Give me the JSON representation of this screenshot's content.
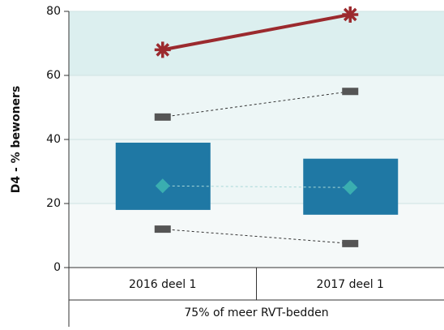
{
  "chart_data": {
    "type": "box",
    "ylabel": "D4 - % bewoners",
    "categories": [
      "2016 deel 1",
      "2017 deel 1"
    ],
    "group_label": "75% of meer RVT-bedden",
    "ylim": [
      0,
      80
    ],
    "yticks": [
      0,
      20,
      40,
      60,
      80
    ],
    "bands": [
      {
        "from": 0,
        "to": 20,
        "color": "#f5f9f9"
      },
      {
        "from": 20,
        "to": 60,
        "color": "#edf6f6"
      },
      {
        "from": 60,
        "to": 80,
        "color": "#dcefef"
      }
    ],
    "boxes": {
      "color": "#1f78a4",
      "low": [
        18,
        16.5
      ],
      "high": [
        39,
        34
      ]
    },
    "series": [
      {
        "marker": "star",
        "color": "#9b2a2e",
        "line": "solid",
        "values": [
          68,
          79
        ]
      },
      {
        "marker": "dash",
        "color": "#555555",
        "line": "dotted",
        "values": [
          47,
          55
        ]
      },
      {
        "marker": "diamond",
        "color": "#3aaeb0",
        "line": "dotted",
        "values": [
          25.5,
          25
        ]
      },
      {
        "marker": "dash",
        "color": "#555555",
        "line": "dotted",
        "values": [
          12,
          7.5
        ]
      }
    ]
  }
}
